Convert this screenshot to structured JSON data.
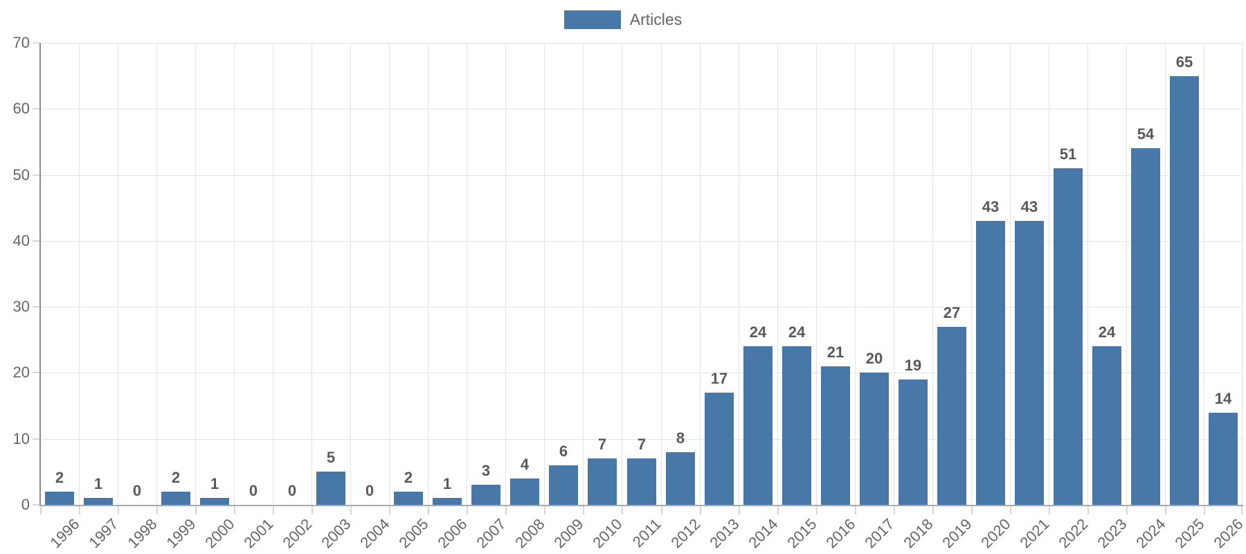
{
  "legend": {
    "label": "Articles"
  },
  "palette": {
    "bar_color": "#4878a8",
    "value_label_color": "#595959",
    "axis_text_color": "#666666",
    "gridline_color": "#e4e4e4",
    "axis_line_color": "#8c8c8c",
    "tick_color": "#d6d6d6"
  },
  "chart_data": {
    "type": "bar",
    "title": "",
    "legend_position": "top-center",
    "legend_entries": [
      "Articles"
    ],
    "grid": true,
    "xlabel": "",
    "ylabel": "",
    "ylim": [
      0,
      70
    ],
    "yticks": [
      0,
      10,
      20,
      30,
      40,
      50,
      60,
      70
    ],
    "categories": [
      "1996",
      "1997",
      "1998",
      "1999",
      "2000",
      "2001",
      "2002",
      "2003",
      "2004",
      "2005",
      "2006",
      "2007",
      "2008",
      "2009",
      "2010",
      "2011",
      "2012",
      "2013",
      "2014",
      "2015",
      "2016",
      "2017",
      "2018",
      "2019",
      "2020",
      "2021",
      "2022",
      "2023",
      "2024",
      "2025",
      "2026"
    ],
    "series": [
      {
        "name": "Articles",
        "values": [
          2,
          1,
          0,
          2,
          1,
          0,
          0,
          5,
          0,
          2,
          1,
          3,
          4,
          6,
          7,
          7,
          8,
          17,
          24,
          24,
          21,
          20,
          19,
          27,
          43,
          43,
          51,
          24,
          54,
          65,
          14
        ]
      }
    ]
  }
}
